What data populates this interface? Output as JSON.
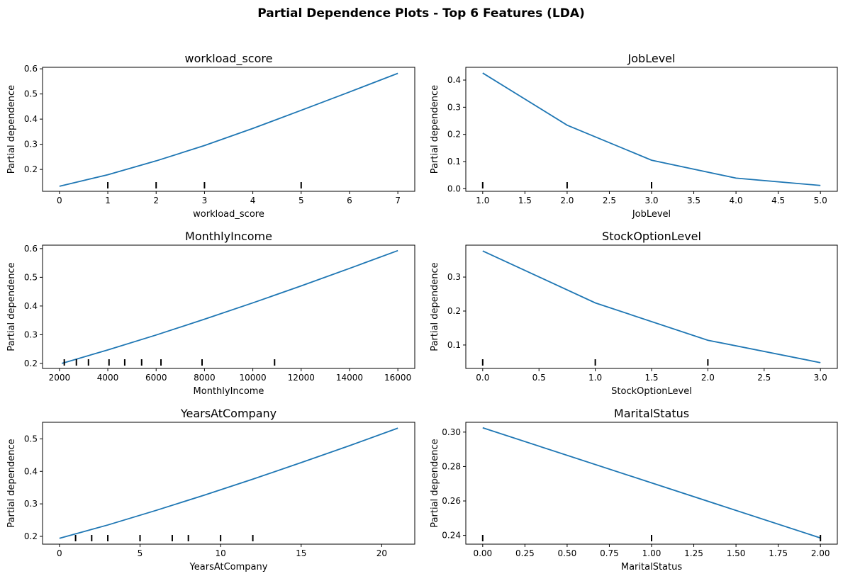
{
  "figure": {
    "title": "Partial Dependence Plots - Top 6 Features (LDA)",
    "line_color": "#1f77b4"
  },
  "chart_data": [
    {
      "type": "line",
      "title": "workload_score",
      "xlabel": "workload_score",
      "ylabel": "Partial dependence",
      "xlim": [
        -0.35,
        7.35
      ],
      "ylim": [
        0.113,
        0.606
      ],
      "xticks": [
        0,
        1,
        2,
        3,
        4,
        5,
        6,
        7
      ],
      "xtick_labels": [
        "0",
        "1",
        "2",
        "3",
        "4",
        "5",
        "6",
        "7"
      ],
      "yticks": [
        0.2,
        0.3,
        0.4,
        0.5,
        0.6
      ],
      "ytick_labels": [
        "0.2",
        "0.3",
        "0.4",
        "0.5",
        "0.6"
      ],
      "rug": [
        1,
        2,
        3,
        5
      ],
      "x": [
        0,
        1,
        2,
        3,
        4,
        5,
        6,
        7
      ],
      "y": [
        0.133,
        0.179,
        0.234,
        0.295,
        0.363,
        0.435,
        0.508,
        0.582
      ]
    },
    {
      "type": "line",
      "title": "JobLevel",
      "xlabel": "JobLevel",
      "ylabel": "Partial dependence",
      "xlim": [
        0.8,
        5.2
      ],
      "ylim": [
        -0.0095,
        0.447
      ],
      "xticks": [
        1.0,
        1.5,
        2.0,
        2.5,
        3.0,
        3.5,
        4.0,
        4.5,
        5.0
      ],
      "xtick_labels": [
        "1.0",
        "1.5",
        "2.0",
        "2.5",
        "3.0",
        "3.5",
        "4.0",
        "4.5",
        "5.0"
      ],
      "yticks": [
        0.0,
        0.1,
        0.2,
        0.3,
        0.4
      ],
      "ytick_labels": [
        "0.0",
        "0.1",
        "0.2",
        "0.3",
        "0.4"
      ],
      "rug": [
        1,
        2,
        3
      ],
      "x": [
        1,
        2,
        3,
        4,
        5
      ],
      "y": [
        0.426,
        0.234,
        0.105,
        0.039,
        0.012
      ]
    },
    {
      "type": "line",
      "title": "MonthlyIncome",
      "xlabel": "MonthlyIncome",
      "ylabel": "Partial dependence",
      "xlim": [
        1300,
        16700
      ],
      "ylim": [
        0.1825,
        0.612
      ],
      "xticks": [
        2000,
        4000,
        6000,
        8000,
        10000,
        12000,
        14000,
        16000
      ],
      "xtick_labels": [
        "2000",
        "4000",
        "6000",
        "8000",
        "10000",
        "12000",
        "14000",
        "16000"
      ],
      "yticks": [
        0.2,
        0.3,
        0.4,
        0.5,
        0.6
      ],
      "ytick_labels": [
        "0.2",
        "0.3",
        "0.4",
        "0.5",
        "0.6"
      ],
      "rug": [
        2200,
        2700,
        3200,
        4050,
        4700,
        5400,
        6200,
        7900,
        10900
      ],
      "x": [
        2100,
        4000,
        6000,
        8000,
        10000,
        12000,
        14000,
        16000
      ],
      "y": [
        0.2,
        0.247,
        0.299,
        0.354,
        0.411,
        0.47,
        0.531,
        0.593
      ]
    },
    {
      "type": "line",
      "title": "StockOptionLevel",
      "xlabel": "StockOptionLevel",
      "ylabel": "Partial dependence",
      "xlim": [
        -0.15,
        3.15
      ],
      "ylim": [
        0.031,
        0.394
      ],
      "xticks": [
        0.0,
        0.5,
        1.0,
        1.5,
        2.0,
        2.5,
        3.0
      ],
      "xtick_labels": [
        "0.0",
        "0.5",
        "1.0",
        "1.5",
        "2.0",
        "2.5",
        "3.0"
      ],
      "yticks": [
        0.1,
        0.2,
        0.3
      ],
      "ytick_labels": [
        "0.1",
        "0.2",
        "0.3"
      ],
      "rug": [
        0,
        1,
        2
      ],
      "x": [
        0,
        1,
        2,
        3
      ],
      "y": [
        0.377,
        0.224,
        0.114,
        0.048
      ]
    },
    {
      "type": "line",
      "title": "YearsAtCompany",
      "xlabel": "YearsAtCompany",
      "ylabel": "Partial dependence",
      "xlim": [
        -1.05,
        22.05
      ],
      "ylim": [
        0.176,
        0.551
      ],
      "xticks": [
        0,
        5,
        10,
        15,
        20
      ],
      "xtick_labels": [
        "0",
        "5",
        "10",
        "15",
        "20"
      ],
      "yticks": [
        0.2,
        0.3,
        0.4,
        0.5
      ],
      "ytick_labels": [
        "0.2",
        "0.3",
        "0.4",
        "0.5"
      ],
      "rug": [
        1,
        2,
        3,
        5,
        7,
        8,
        10,
        12
      ],
      "x": [
        0,
        3,
        6,
        9,
        12,
        15,
        18,
        21
      ],
      "y": [
        0.194,
        0.235,
        0.28,
        0.327,
        0.376,
        0.427,
        0.479,
        0.533
      ]
    },
    {
      "type": "line",
      "title": "MaritalStatus",
      "xlabel": "MaritalStatus",
      "ylabel": "Partial dependence",
      "xlim": [
        -0.1,
        2.1
      ],
      "ylim": [
        0.2349,
        0.3057
      ],
      "xticks": [
        0.0,
        0.25,
        0.5,
        0.75,
        1.0,
        1.25,
        1.5,
        1.75,
        2.0
      ],
      "xtick_labels": [
        "0.00",
        "0.25",
        "0.50",
        "0.75",
        "1.00",
        "1.25",
        "1.50",
        "1.75",
        "2.00"
      ],
      "yticks": [
        0.24,
        0.26,
        0.28,
        0.3
      ],
      "ytick_labels": [
        "0.24",
        "0.26",
        "0.28",
        "0.30"
      ],
      "rug": [
        0,
        1,
        2
      ],
      "x": [
        0,
        1,
        2
      ],
      "y": [
        0.3025,
        0.2705,
        0.2385
      ]
    }
  ]
}
